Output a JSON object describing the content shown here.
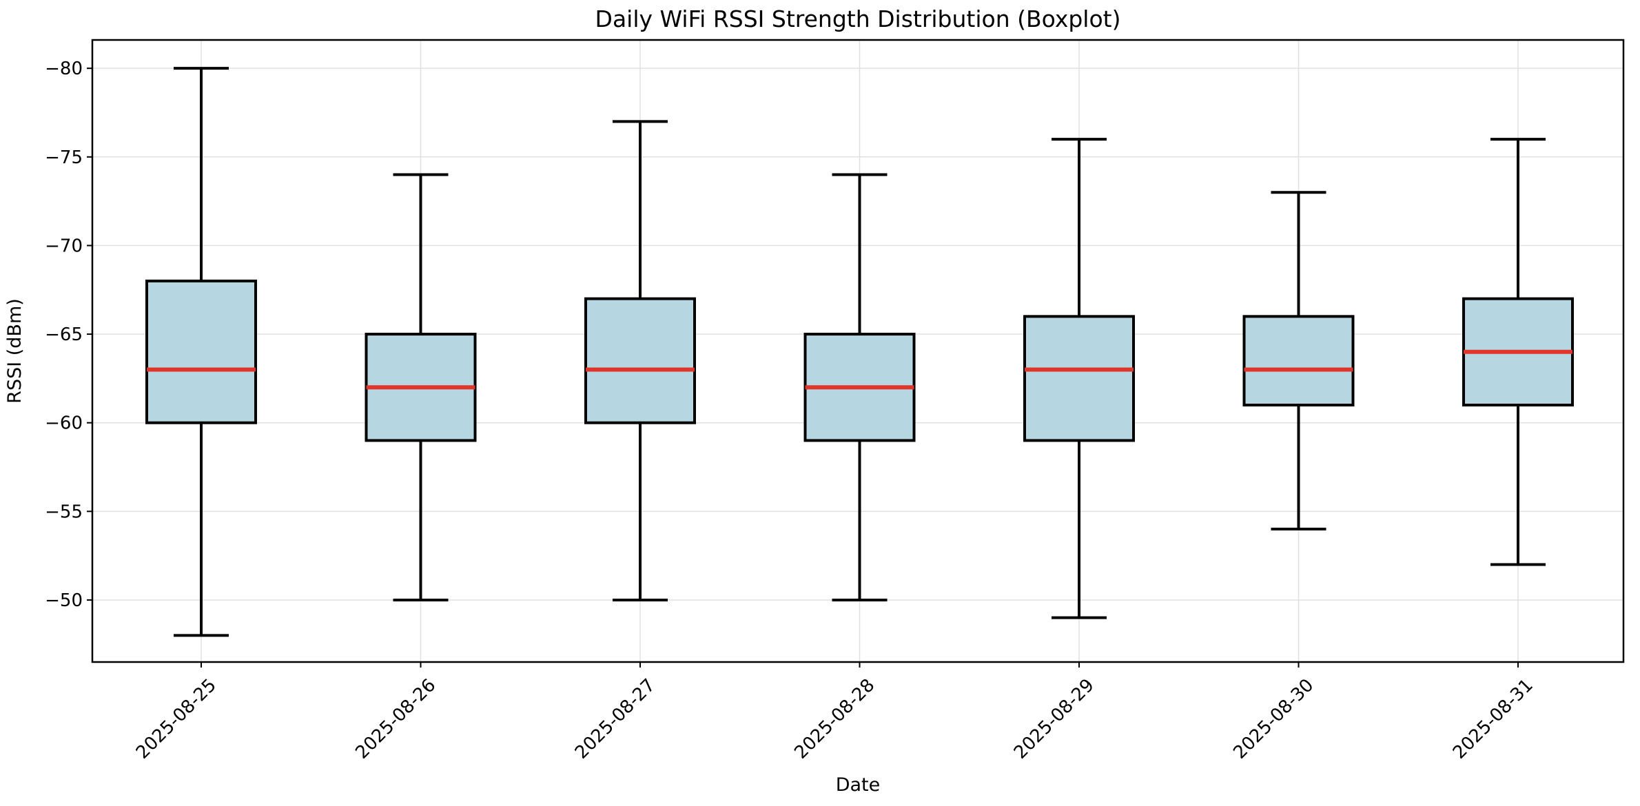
{
  "chart_data": {
    "type": "boxplot",
    "title": "Daily WiFi RSSI Strength Distribution (Boxplot)",
    "xlabel": "Date",
    "ylabel": "RSSI (dBm)",
    "categories": [
      "2025-08-25",
      "2025-08-26",
      "2025-08-27",
      "2025-08-28",
      "2025-08-29",
      "2025-08-30",
      "2025-08-31"
    ],
    "boxes": [
      {
        "category": "2025-08-25",
        "whisker_low": -80,
        "q1": -68,
        "median": -63,
        "q3": -60,
        "whisker_high": -48
      },
      {
        "category": "2025-08-26",
        "whisker_low": -74,
        "q1": -65,
        "median": -62,
        "q3": -59,
        "whisker_high": -50
      },
      {
        "category": "2025-08-27",
        "whisker_low": -77,
        "q1": -67,
        "median": -63,
        "q3": -60,
        "whisker_high": -50
      },
      {
        "category": "2025-08-28",
        "whisker_low": -74,
        "q1": -65,
        "median": -62,
        "q3": -59,
        "whisker_high": -50
      },
      {
        "category": "2025-08-29",
        "whisker_low": -76,
        "q1": -66,
        "median": -63,
        "q3": -59,
        "whisker_high": -49
      },
      {
        "category": "2025-08-30",
        "whisker_low": -73,
        "q1": -66,
        "median": -63,
        "q3": -61,
        "whisker_high": -54
      },
      {
        "category": "2025-08-31",
        "whisker_low": -76,
        "q1": -67,
        "median": -64,
        "q3": -61,
        "whisker_high": -52
      }
    ],
    "yticks": [
      -80,
      -75,
      -70,
      -65,
      -60,
      -55,
      -50
    ],
    "ytick_labels": [
      "−80",
      "−75",
      "−70",
      "−65",
      "−60",
      "−55",
      "−50"
    ],
    "ylim": [
      -81.6,
      -46.5
    ],
    "y_inverted": true,
    "grid": true,
    "xtick_rotation_deg": 45,
    "colors": {
      "box_fill": "#b6d7e2",
      "median": "#e0352b",
      "edge": "#000000",
      "grid": "#e0e0e0"
    }
  }
}
